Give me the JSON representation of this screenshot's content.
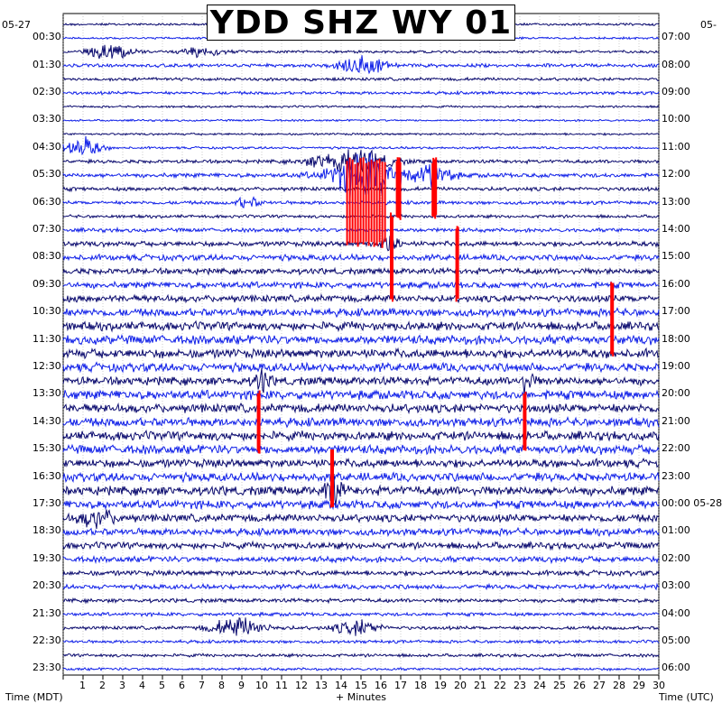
{
  "chart_data": {
    "type": "line",
    "title": "YDD SHZ WY 01",
    "date_left": "05-27",
    "date_right_top": "05-",
    "xlabel": "+ Minutes",
    "left_axis_label": "Time (MDT)",
    "right_axis_label": "Time (UTC)",
    "x_ticks": [
      "1",
      "2",
      "3",
      "4",
      "5",
      "6",
      "7",
      "8",
      "9",
      "10",
      "11",
      "12",
      "13",
      "14",
      "15",
      "16",
      "17",
      "18",
      "19",
      "20",
      "21",
      "22",
      "23",
      "24",
      "25",
      "26",
      "27",
      "28",
      "29",
      "30"
    ],
    "xlim": [
      0,
      30
    ],
    "left_row_labels": [
      "00:30",
      "01:30",
      "02:30",
      "03:30",
      "04:30",
      "05:30",
      "06:30",
      "07:30",
      "08:30",
      "09:30",
      "10:30",
      "11:30",
      "12:30",
      "13:30",
      "14:30",
      "15:30",
      "16:30",
      "17:30",
      "18:30",
      "19:30",
      "20:30",
      "21:30",
      "22:30",
      "23:30"
    ],
    "right_row_labels": [
      "07:00",
      "08:00",
      "09:00",
      "10:00",
      "11:00",
      "12:00",
      "13:00",
      "14:00",
      "15:00",
      "16:00",
      "17:00",
      "18:00",
      "19:00",
      "20:00",
      "21:00",
      "22:00",
      "23:00",
      "00:00 05-28",
      "01:00",
      "02:00",
      "03:00",
      "04:00",
      "05:00",
      "06:00"
    ],
    "trace_count": 48,
    "trace_colors": [
      "#0a0a6e",
      "#1020e8",
      "#0a0a6e",
      "#1020e8"
    ],
    "clip_color": "#ff0000",
    "activity_per_trace": [
      0.15,
      0.12,
      0.2,
      0.3,
      0.25,
      0.25,
      0.12,
      0.1,
      0.12,
      0.15,
      0.3,
      0.4,
      0.35,
      0.3,
      0.25,
      0.35,
      0.5,
      0.6,
      0.6,
      0.65,
      0.75,
      0.85,
      0.95,
      1.0,
      1.0,
      0.95,
      0.9,
      1.0,
      1.0,
      0.95,
      1.0,
      1.0,
      0.9,
      0.95,
      1.0,
      0.9,
      0.85,
      0.75,
      0.7,
      0.6,
      0.5,
      0.45,
      0.35,
      0.3,
      0.3,
      0.25,
      0.25,
      0.2
    ],
    "events": [
      {
        "trace": 2,
        "minute": 2.5,
        "amp": 2.2,
        "dur": 1.5
      },
      {
        "trace": 2,
        "minute": 7.0,
        "amp": 1.8,
        "dur": 1.2
      },
      {
        "trace": 3,
        "minute": 15.0,
        "amp": 2.5,
        "dur": 1.6
      },
      {
        "trace": 9,
        "minute": 1.0,
        "amp": 2.8,
        "dur": 1.2
      },
      {
        "trace": 10,
        "minute": 14.5,
        "amp": 3.5,
        "dur": 2.5
      },
      {
        "trace": 11,
        "minute": 15.3,
        "amp": 6.0,
        "dur": 2.5
      },
      {
        "trace": 11,
        "minute": 18.7,
        "amp": 3.0,
        "dur": 1.2
      },
      {
        "trace": 13,
        "minute": 9.3,
        "amp": 1.5,
        "dur": 0.8
      },
      {
        "trace": 16,
        "minute": 16.5,
        "amp": 2.5,
        "dur": 0.6
      },
      {
        "trace": 26,
        "minute": 10.0,
        "amp": 3.0,
        "dur": 0.5
      },
      {
        "trace": 26,
        "minute": 23.3,
        "amp": 3.0,
        "dur": 0.5
      },
      {
        "trace": 34,
        "minute": 13.6,
        "amp": 3.5,
        "dur": 0.6
      },
      {
        "trace": 36,
        "minute": 1.7,
        "amp": 2.2,
        "dur": 1.2
      },
      {
        "trace": 44,
        "minute": 8.8,
        "amp": 2.6,
        "dur": 1.8
      },
      {
        "trace": 44,
        "minute": 14.8,
        "amp": 2.0,
        "dur": 1.5
      }
    ],
    "clipped_segments": [
      {
        "trace_start": 10,
        "trace_end": 16,
        "minute_start": 14.3,
        "minute_end": 16.3
      },
      {
        "trace_start": 10,
        "trace_end": 14,
        "minute_start": 16.8,
        "minute_end": 17.0
      },
      {
        "trace_start": 10,
        "trace_end": 14,
        "minute_start": 18.6,
        "minute_end": 18.8
      },
      {
        "trace_start": 14,
        "trace_end": 20,
        "minute_start": 16.5,
        "minute_end": 16.6
      },
      {
        "trace_start": 15,
        "trace_end": 20,
        "minute_start": 19.8,
        "minute_end": 19.9
      },
      {
        "trace_start": 19,
        "trace_end": 24,
        "minute_start": 27.6,
        "minute_end": 27.7
      },
      {
        "trace_start": 27,
        "trace_end": 31,
        "minute_start": 9.8,
        "minute_end": 9.9
      },
      {
        "trace_start": 27,
        "trace_end": 31,
        "minute_start": 23.2,
        "minute_end": 23.3
      },
      {
        "trace_start": 31,
        "trace_end": 35,
        "minute_start": 13.5,
        "minute_end": 13.6
      }
    ]
  }
}
